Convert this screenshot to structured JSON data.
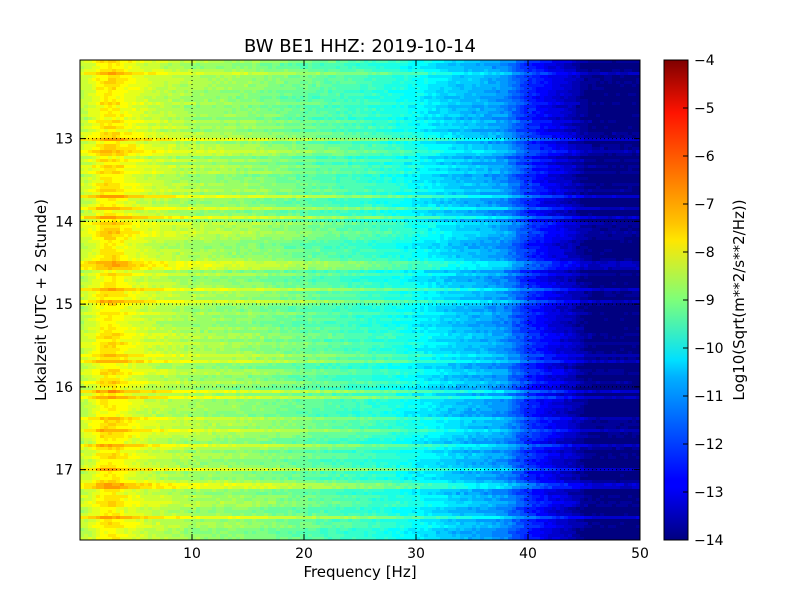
{
  "chart_data": {
    "type": "heatmap",
    "title": "BW BE1 HHZ: 2019-10-14",
    "xlabel": "Frequency [Hz]",
    "ylabel": "Lokalzeit (UTC + 2 Stunde)",
    "colorbar_label": "Log10(Sqrt(m**2/s**2/Hz))",
    "colormap": "jet",
    "xlim": [
      0,
      50
    ],
    "ylim": [
      12.05,
      17.85
    ],
    "y_inverted": true,
    "x_ticks": [
      "10",
      "20",
      "30",
      "40",
      "50"
    ],
    "y_ticks": [
      "13",
      "14",
      "15",
      "16",
      "17"
    ],
    "colorbar_range": [
      -14,
      -4
    ],
    "colorbar_ticks": [
      "−4",
      "−5",
      "−6",
      "−7",
      "−8",
      "−9",
      "−10",
      "−11",
      "−12",
      "−13",
      "−14"
    ],
    "grid": true,
    "grid_style": "dotted",
    "level_profile": {
      "frequency_hz": [
        0,
        1,
        2,
        3,
        4,
        6,
        10,
        15,
        20,
        25,
        28,
        30,
        32,
        34,
        36,
        38,
        39,
        40,
        42,
        44,
        45,
        46,
        50
      ],
      "log10_amplitude": [
        -8.4,
        -8.1,
        -7.6,
        -7.5,
        -7.8,
        -8.2,
        -8.6,
        -8.8,
        -9.2,
        -9.6,
        -9.9,
        -10.2,
        -10.5,
        -10.8,
        -11.0,
        -11.3,
        -11.8,
        -12.3,
        -12.9,
        -13.4,
        -13.8,
        -14.0,
        -14.0
      ]
    }
  }
}
